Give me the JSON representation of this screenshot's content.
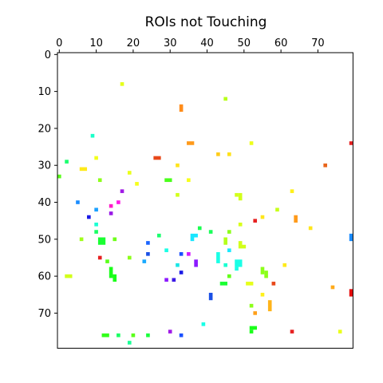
{
  "chart_data": {
    "type": "heatmap",
    "title": "ROIs not Touching",
    "xlabel": "",
    "ylabel": "",
    "xlim": [
      0,
      80
    ],
    "ylim": [
      80,
      0
    ],
    "x_axis_position": "top",
    "x_ticks": [
      0,
      10,
      20,
      30,
      40,
      50,
      60,
      70
    ],
    "y_ticks": [
      0,
      10,
      20,
      30,
      40,
      50,
      60,
      70
    ],
    "grid": false,
    "colormap": "hsv",
    "background": "#ffffff",
    "rois": [
      {
        "x": 17,
        "y": 8,
        "w": 1,
        "h": 1,
        "color": "#e6ff1a"
      },
      {
        "x": 45,
        "y": 12,
        "w": 1,
        "h": 1,
        "color": "#b8ff1a"
      },
      {
        "x": 33,
        "y": 14,
        "w": 1,
        "h": 2,
        "color": "#ff8c1a"
      },
      {
        "x": 9,
        "y": 22,
        "w": 1,
        "h": 1,
        "color": "#1affc8"
      },
      {
        "x": 35,
        "y": 24,
        "w": 2,
        "h": 1,
        "color": "#ff9a1a"
      },
      {
        "x": 52,
        "y": 24,
        "w": 1,
        "h": 1,
        "color": "#eeff1a"
      },
      {
        "x": 79,
        "y": 24,
        "w": 1,
        "h": 1,
        "color": "#e62020"
      },
      {
        "x": 43,
        "y": 27,
        "w": 1,
        "h": 1,
        "color": "#ffcc1a"
      },
      {
        "x": 46,
        "y": 27,
        "w": 1,
        "h": 1,
        "color": "#ffe21a"
      },
      {
        "x": 10,
        "y": 28,
        "w": 1,
        "h": 1,
        "color": "#f2ff1a"
      },
      {
        "x": 26,
        "y": 28,
        "w": 2,
        "h": 1,
        "color": "#e8481a"
      },
      {
        "x": 2,
        "y": 29,
        "w": 1,
        "h": 1,
        "color": "#1aff6e"
      },
      {
        "x": 32,
        "y": 30,
        "w": 1,
        "h": 1,
        "color": "#ffe41a"
      },
      {
        "x": 72,
        "y": 30,
        "w": 1,
        "h": 1,
        "color": "#e8641a"
      },
      {
        "x": 6,
        "y": 31,
        "w": 2,
        "h": 1,
        "color": "#ffea1a"
      },
      {
        "x": 19,
        "y": 32,
        "w": 1,
        "h": 1,
        "color": "#eaff1a"
      },
      {
        "x": 0,
        "y": 33,
        "w": 1,
        "h": 1,
        "color": "#5aff1a"
      },
      {
        "x": 11,
        "y": 34,
        "w": 1,
        "h": 1,
        "color": "#8cff1a"
      },
      {
        "x": 29,
        "y": 34,
        "w": 2,
        "h": 1,
        "color": "#4aff1a"
      },
      {
        "x": 35,
        "y": 34,
        "w": 1,
        "h": 1,
        "color": "#f6ff1a"
      },
      {
        "x": 21,
        "y": 35,
        "w": 1,
        "h": 1,
        "color": "#f6ff1a"
      },
      {
        "x": 17,
        "y": 37,
        "w": 1,
        "h": 1,
        "color": "#a01ae6"
      },
      {
        "x": 63,
        "y": 37,
        "w": 1,
        "h": 1,
        "color": "#fff01a"
      },
      {
        "x": 32,
        "y": 38,
        "w": 1,
        "h": 1,
        "color": "#d2ff1a"
      },
      {
        "x": 49,
        "y": 38,
        "w": 1,
        "h": 2,
        "color": "#d2ff1a"
      },
      {
        "x": 48,
        "y": 38,
        "w": 1,
        "h": 1,
        "color": "#d2ff1a"
      },
      {
        "x": 5,
        "y": 40,
        "w": 1,
        "h": 1,
        "color": "#1a8cff"
      },
      {
        "x": 16,
        "y": 40,
        "w": 1,
        "h": 1,
        "color": "#ff1ae6"
      },
      {
        "x": 10,
        "y": 42,
        "w": 1,
        "h": 1,
        "color": "#1aa0ff"
      },
      {
        "x": 59,
        "y": 42,
        "w": 1,
        "h": 1,
        "color": "#c8ff1a"
      },
      {
        "x": 14,
        "y": 41,
        "w": 1,
        "h": 1,
        "color": "#ff1ac8"
      },
      {
        "x": 14,
        "y": 43,
        "w": 1,
        "h": 1,
        "color": "#9a1ae6"
      },
      {
        "x": 8,
        "y": 44,
        "w": 1,
        "h": 1,
        "color": "#1a1ae6"
      },
      {
        "x": 64,
        "y": 44,
        "w": 1,
        "h": 2,
        "color": "#ff9a1a"
      },
      {
        "x": 55,
        "y": 44,
        "w": 1,
        "h": 1,
        "color": "#ffe61a"
      },
      {
        "x": 53,
        "y": 45,
        "w": 1,
        "h": 1,
        "color": "#e62020"
      },
      {
        "x": 10,
        "y": 46,
        "w": 1,
        "h": 1,
        "color": "#1affd2"
      },
      {
        "x": 49,
        "y": 46,
        "w": 1,
        "h": 1,
        "color": "#d8ff1a"
      },
      {
        "x": 38,
        "y": 47,
        "w": 1,
        "h": 1,
        "color": "#1aff50"
      },
      {
        "x": 68,
        "y": 47,
        "w": 1,
        "h": 1,
        "color": "#ffe61a"
      },
      {
        "x": 10,
        "y": 48,
        "w": 1,
        "h": 1,
        "color": "#1aff64"
      },
      {
        "x": 41,
        "y": 48,
        "w": 1,
        "h": 1,
        "color": "#1aff5a"
      },
      {
        "x": 46,
        "y": 48,
        "w": 1,
        "h": 1,
        "color": "#8cff1a"
      },
      {
        "x": 27,
        "y": 49,
        "w": 1,
        "h": 1,
        "color": "#1aff6e"
      },
      {
        "x": 36,
        "y": 49,
        "w": 2,
        "h": 1,
        "color": "#1ae6ff"
      },
      {
        "x": 36,
        "y": 50,
        "w": 1,
        "h": 1,
        "color": "#1ae6ff"
      },
      {
        "x": 79,
        "y": 49,
        "w": 1,
        "h": 2,
        "color": "#1a8cff"
      },
      {
        "x": 6,
        "y": 50,
        "w": 1,
        "h": 1,
        "color": "#a0ff1a"
      },
      {
        "x": 11,
        "y": 50,
        "w": 2,
        "h": 2,
        "color": "#1aff32"
      },
      {
        "x": 15,
        "y": 50,
        "w": 1,
        "h": 1,
        "color": "#6eff1a"
      },
      {
        "x": 45,
        "y": 50,
        "w": 1,
        "h": 2,
        "color": "#b4ff1a"
      },
      {
        "x": 24,
        "y": 51,
        "w": 1,
        "h": 1,
        "color": "#1a64ff"
      },
      {
        "x": 49,
        "y": 51,
        "w": 1,
        "h": 2,
        "color": "#d2ff1a"
      },
      {
        "x": 50,
        "y": 52,
        "w": 1,
        "h": 1,
        "color": "#d2ff1a"
      },
      {
        "x": 29,
        "y": 53,
        "w": 1,
        "h": 1,
        "color": "#1affe6"
      },
      {
        "x": 46,
        "y": 53,
        "w": 1,
        "h": 1,
        "color": "#1aeaff"
      },
      {
        "x": 24,
        "y": 54,
        "w": 1,
        "h": 1,
        "color": "#1a50e6"
      },
      {
        "x": 33,
        "y": 54,
        "w": 1,
        "h": 1,
        "color": "#1a50ff"
      },
      {
        "x": 35,
        "y": 54,
        "w": 1,
        "h": 1,
        "color": "#d21aff"
      },
      {
        "x": 43,
        "y": 54,
        "w": 1,
        "h": 3,
        "color": "#1affe6"
      },
      {
        "x": 11,
        "y": 55,
        "w": 1,
        "h": 1,
        "color": "#e62020"
      },
      {
        "x": 19,
        "y": 55,
        "w": 1,
        "h": 1,
        "color": "#8cff1a"
      },
      {
        "x": 13,
        "y": 56,
        "w": 1,
        "h": 1,
        "color": "#5aff1a"
      },
      {
        "x": 23,
        "y": 56,
        "w": 1,
        "h": 1,
        "color": "#1aaaff"
      },
      {
        "x": 37,
        "y": 56,
        "w": 1,
        "h": 2,
        "color": "#8c1aff"
      },
      {
        "x": 48,
        "y": 56,
        "w": 2,
        "h": 2,
        "color": "#1affe6"
      },
      {
        "x": 48,
        "y": 58,
        "w": 1,
        "h": 1,
        "color": "#1affe6"
      },
      {
        "x": 32,
        "y": 57,
        "w": 1,
        "h": 1,
        "color": "#1ae6e6"
      },
      {
        "x": 45,
        "y": 57,
        "w": 1,
        "h": 1,
        "color": "#1affd2"
      },
      {
        "x": 61,
        "y": 57,
        "w": 1,
        "h": 1,
        "color": "#ffea1a"
      },
      {
        "x": 14,
        "y": 58,
        "w": 1,
        "h": 3,
        "color": "#1aff1a"
      },
      {
        "x": 15,
        "y": 60,
        "w": 1,
        "h": 2,
        "color": "#1aff1a"
      },
      {
        "x": 55,
        "y": 58,
        "w": 1,
        "h": 2,
        "color": "#8cff1a"
      },
      {
        "x": 56,
        "y": 59,
        "w": 1,
        "h": 2,
        "color": "#8cff1a"
      },
      {
        "x": 33,
        "y": 59,
        "w": 1,
        "h": 1,
        "color": "#1a1ae6"
      },
      {
        "x": 2,
        "y": 60,
        "w": 2,
        "h": 1,
        "color": "#d2ff1a"
      },
      {
        "x": 46,
        "y": 60,
        "w": 1,
        "h": 1,
        "color": "#64ff1a"
      },
      {
        "x": 29,
        "y": 61,
        "w": 1,
        "h": 1,
        "color": "#8c1aff"
      },
      {
        "x": 31,
        "y": 61,
        "w": 1,
        "h": 1,
        "color": "#3c1ae6"
      },
      {
        "x": 44,
        "y": 62,
        "w": 2,
        "h": 1,
        "color": "#1aff32"
      },
      {
        "x": 51,
        "y": 62,
        "w": 2,
        "h": 1,
        "color": "#e6ff1a"
      },
      {
        "x": 58,
        "y": 62,
        "w": 1,
        "h": 1,
        "color": "#e8481a"
      },
      {
        "x": 74,
        "y": 63,
        "w": 1,
        "h": 1,
        "color": "#ffaa1a"
      },
      {
        "x": 79,
        "y": 64,
        "w": 1,
        "h": 2,
        "color": "#e60a0a"
      },
      {
        "x": 41,
        "y": 65,
        "w": 1,
        "h": 2,
        "color": "#1a50e6"
      },
      {
        "x": 55,
        "y": 65,
        "w": 1,
        "h": 1,
        "color": "#fff01a"
      },
      {
        "x": 57,
        "y": 67,
        "w": 1,
        "h": 3,
        "color": "#ffb41a"
      },
      {
        "x": 52,
        "y": 68,
        "w": 1,
        "h": 1,
        "color": "#8cff1a"
      },
      {
        "x": 53,
        "y": 70,
        "w": 1,
        "h": 1,
        "color": "#ffa01a"
      },
      {
        "x": 39,
        "y": 73,
        "w": 1,
        "h": 1,
        "color": "#1affe6"
      },
      {
        "x": 52,
        "y": 74,
        "w": 2,
        "h": 1,
        "color": "#1aff1a"
      },
      {
        "x": 52,
        "y": 75,
        "w": 1,
        "h": 1,
        "color": "#1aff1a"
      },
      {
        "x": 30,
        "y": 75,
        "w": 1,
        "h": 1,
        "color": "#a01ae6"
      },
      {
        "x": 63,
        "y": 75,
        "w": 1,
        "h": 1,
        "color": "#e62020"
      },
      {
        "x": 76,
        "y": 75,
        "w": 1,
        "h": 1,
        "color": "#eaff1a"
      },
      {
        "x": 12,
        "y": 76,
        "w": 2,
        "h": 1,
        "color": "#32ff1a"
      },
      {
        "x": 16,
        "y": 76,
        "w": 1,
        "h": 1,
        "color": "#1aff64"
      },
      {
        "x": 20,
        "y": 76,
        "w": 1,
        "h": 1,
        "color": "#5aff1a"
      },
      {
        "x": 24,
        "y": 76,
        "w": 1,
        "h": 1,
        "color": "#1aff3c"
      },
      {
        "x": 33,
        "y": 76,
        "w": 1,
        "h": 1,
        "color": "#1a50ff"
      },
      {
        "x": 19,
        "y": 78,
        "w": 1,
        "h": 1,
        "color": "#1aff96"
      }
    ]
  }
}
